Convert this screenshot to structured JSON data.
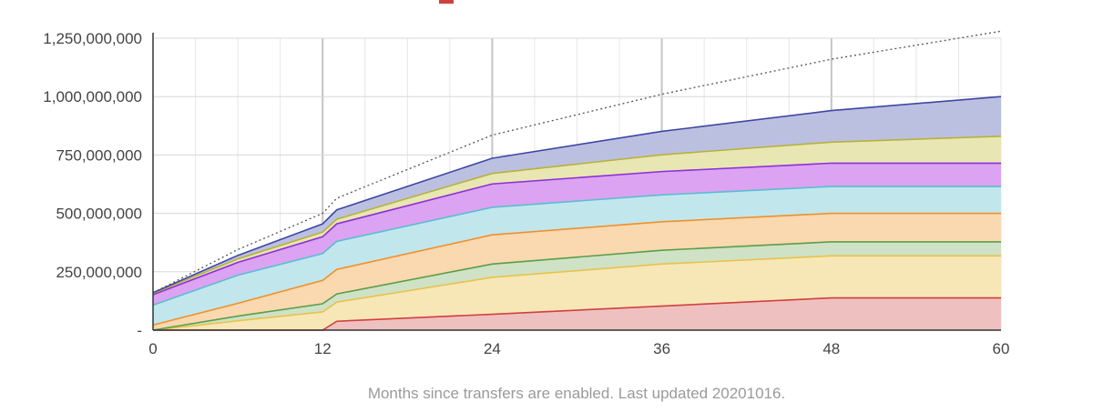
{
  "chart_data": {
    "type": "area",
    "stacked": true,
    "title": "",
    "xlabel": "Months since transfers are enabled. Last updated 20201016.",
    "ylabel": "",
    "xlim": [
      0,
      60
    ],
    "ylim": [
      0,
      1250000000
    ],
    "x_ticks": [
      0,
      12,
      24,
      36,
      48,
      60
    ],
    "x_tick_labels": [
      "0",
      "12",
      "24",
      "36",
      "48",
      "60"
    ],
    "y_ticks": [
      0,
      250000000,
      500000000,
      750000000,
      1000000000,
      1250000000
    ],
    "y_tick_labels": [
      "-",
      "250,000,000",
      "500,000,000",
      "750,000,000",
      "1,000,000,000",
      "1,250,000,000"
    ],
    "grid": true,
    "x": [
      0,
      6,
      12,
      13,
      24,
      36,
      48,
      60
    ],
    "series": [
      {
        "color": "#d23f3f",
        "fill": "#efc0c0",
        "values": [
          0,
          0,
          0,
          38000000,
          68000000,
          103000000,
          138000000,
          138000000
        ]
      },
      {
        "color": "#e8c24c",
        "fill": "#f7e7b7",
        "values": [
          0,
          40000000,
          78000000,
          82000000,
          158000000,
          180000000,
          180000000,
          180000000
        ]
      },
      {
        "color": "#5a9e47",
        "fill": "#cfe2c6",
        "values": [
          0,
          20000000,
          35000000,
          35000000,
          57000000,
          59000000,
          60000000,
          60000000
        ]
      },
      {
        "color": "#f0902a",
        "fill": "#fad8b0",
        "values": [
          22000000,
          55000000,
          100000000,
          105000000,
          125000000,
          122000000,
          122000000,
          122000000
        ]
      },
      {
        "color": "#5bbdd0",
        "fill": "#c1e7ed",
        "values": [
          85000000,
          120000000,
          115000000,
          120000000,
          118000000,
          115000000,
          115000000,
          115000000
        ]
      },
      {
        "color": "#8c2fd8",
        "fill": "#dba3f2",
        "values": [
          45000000,
          55000000,
          72000000,
          75000000,
          100000000,
          100000000,
          100000000,
          100000000
        ]
      },
      {
        "color": "#b7b23a",
        "fill": "#e8e6b3",
        "values": [
          5000000,
          15000000,
          20000000,
          20000000,
          45000000,
          72000000,
          90000000,
          115000000
        ]
      },
      {
        "color": "#3d47a6",
        "fill": "#bcc0e0",
        "values": [
          3000000,
          15000000,
          35000000,
          40000000,
          65000000,
          100000000,
          135000000,
          170000000
        ]
      }
    ],
    "reference_line": {
      "style": "dotted",
      "color": "#555555",
      "values": [
        160000000,
        345000000,
        500000000,
        565000000,
        835000000,
        1010000000,
        1160000000,
        1280000000
      ]
    }
  }
}
